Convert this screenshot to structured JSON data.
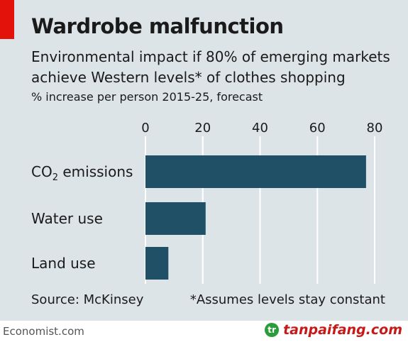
{
  "header": {
    "title": "Wardrobe malfunction",
    "subtitle": "Environmental impact if 80% of emerging markets achieve Western levels* of clothes shopping",
    "unit": "% increase per person 2015-25, forecast"
  },
  "footer": {
    "source": "Source: McKinsey",
    "footnote": "*Assumes levels stay constant",
    "brand": "Economist.com",
    "watermark": "tanpaifang.com",
    "watermark_logo": "tr"
  },
  "colors": {
    "background": "#dde4e7",
    "bar": "#1f5066",
    "accent": "#e3120b",
    "grid": "#ffffff"
  },
  "chart_data": {
    "type": "bar",
    "orientation": "horizontal",
    "categories": [
      "CO",
      "Water use",
      "Land use"
    ],
    "category_subscripts": [
      "2 emissions",
      "",
      ""
    ],
    "values": [
      77,
      21,
      8
    ],
    "xlim": [
      0,
      80
    ],
    "xticks": [
      "0",
      "20",
      "40",
      "60",
      "80"
    ],
    "xtick_values": [
      0,
      20,
      40,
      60,
      80
    ],
    "grid": true,
    "legend": "none"
  }
}
